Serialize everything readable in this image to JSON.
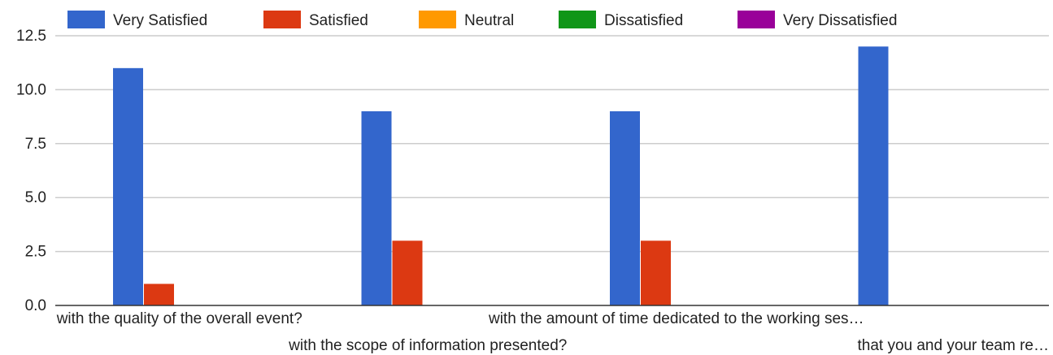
{
  "chart_data": {
    "type": "bar",
    "title": "",
    "xlabel": "",
    "ylabel": "",
    "ylim": [
      0,
      12.5
    ],
    "yticks": [
      "0.0",
      "2.5",
      "5.0",
      "7.5",
      "10.0",
      "12.5"
    ],
    "grid": true,
    "legend_position": "top",
    "categories": [
      "with the quality of the overall event?",
      "with the scope of information presented?",
      "with the amount of time dedicated to the working ses…",
      "that you and your team re…"
    ],
    "series": [
      {
        "name": "Very Satisfied",
        "color": "#3366cc",
        "values": [
          11,
          9,
          9,
          12
        ]
      },
      {
        "name": "Satisfied",
        "color": "#dc3912",
        "values": [
          1,
          3,
          3,
          0
        ]
      },
      {
        "name": "Neutral",
        "color": "#ff9900",
        "values": [
          0,
          0,
          0,
          0
        ]
      },
      {
        "name": "Dissatisfied",
        "color": "#109618",
        "values": [
          0,
          0,
          0,
          0
        ]
      },
      {
        "name": "Very Dissatisfied",
        "color": "#990099",
        "values": [
          0,
          0,
          0,
          0
        ]
      }
    ]
  }
}
